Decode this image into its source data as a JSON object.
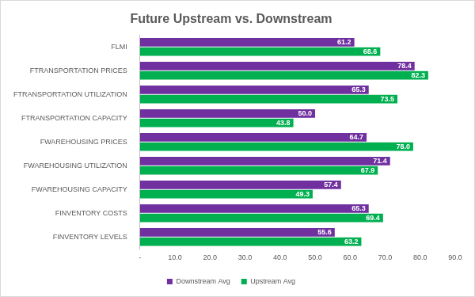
{
  "chart_data": {
    "type": "bar",
    "title": "Future Upstream vs. Downstream",
    "orientation": "horizontal",
    "categories": [
      "FLMI",
      "FTRANSPORTATION PRICES",
      "FTRANSPORTATION UTILIZATION",
      "FTRANSPORTATION CAPACITY",
      "FWAREHOUSING PRICES",
      "FWAREHOUSING UTILIZATION",
      "FWAREHOUSING CAPACITY",
      "FINVENTORY COSTS",
      "FINVENTORY LEVELS"
    ],
    "series": [
      {
        "name": "Downstream Avg",
        "color": "#7030a0",
        "values": [
          61.2,
          78.4,
          65.3,
          50.0,
          64.7,
          71.4,
          57.4,
          65.3,
          55.6
        ],
        "value_labels": [
          "61.2",
          "78.4",
          "65.3",
          "50.0",
          "64.7",
          "71.4",
          "57.4",
          "65.3",
          "55.6"
        ]
      },
      {
        "name": "Upstream Avg",
        "color": "#00b050",
        "values": [
          68.6,
          82.3,
          73.5,
          43.8,
          78.0,
          67.9,
          49.3,
          69.4,
          63.2
        ],
        "value_labels": [
          "68.6",
          "82.3",
          "73.5",
          "43.8",
          "78.0",
          "67.9",
          "49.3",
          "69.4",
          "63.2"
        ]
      }
    ],
    "xlim": [
      0,
      90
    ],
    "xticks": [
      {
        "value": 0,
        "label": "-"
      },
      {
        "value": 10,
        "label": "10.0"
      },
      {
        "value": 20,
        "label": "20.0"
      },
      {
        "value": 30,
        "label": "30.0"
      },
      {
        "value": 40,
        "label": "40.0"
      },
      {
        "value": 50,
        "label": "50.0"
      },
      {
        "value": 60,
        "label": "60.0"
      },
      {
        "value": 70,
        "label": "70.0"
      },
      {
        "value": 80,
        "label": "80.0"
      },
      {
        "value": 90,
        "label": "90.0"
      }
    ],
    "grid": false,
    "legend": "bottom",
    "data_labels": true
  }
}
